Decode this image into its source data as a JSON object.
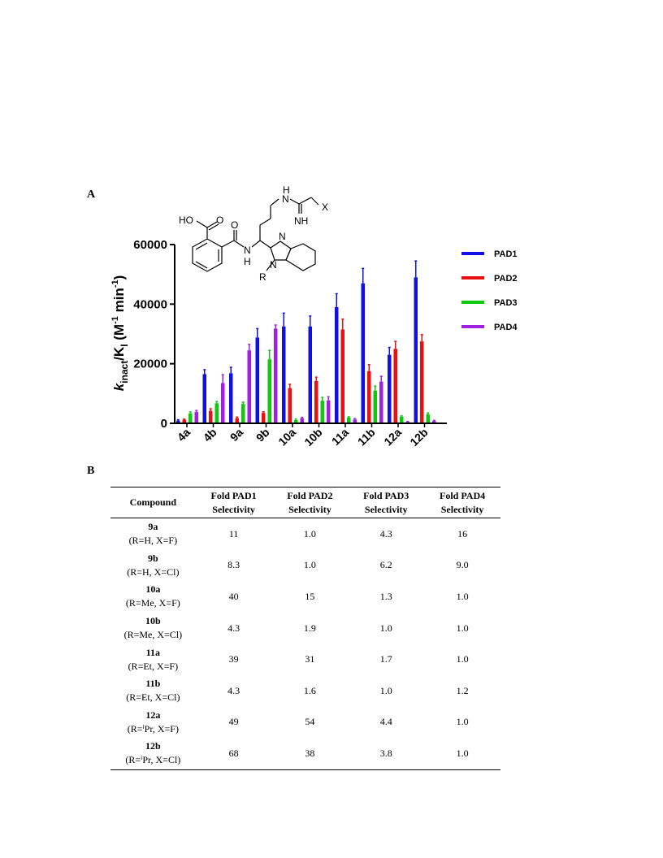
{
  "panels": {
    "a": "A",
    "b": "B"
  },
  "structure": {
    "labels": [
      "HO",
      "O",
      "O",
      "N",
      "H",
      "N",
      "N",
      "R",
      "H",
      "N",
      "NH",
      "X"
    ]
  },
  "chart_data": {
    "type": "bar",
    "ylabel_main": "k",
    "ylabel_sub_inact": "inact",
    "ylabel_mid": "/K",
    "ylabel_sub_i": "I",
    "ylabel_units": " (M",
    "ylabel_exp1": "-1",
    "ylabel_units2": " min",
    "ylabel_exp2": "-1",
    "ylabel_close": ")",
    "ylim": [
      0,
      60000
    ],
    "yticks": [
      "0",
      "20000",
      "40000",
      "60000"
    ],
    "ytick_values": [
      0,
      20000,
      40000,
      60000
    ],
    "categories": [
      "4a",
      "4b",
      "9a",
      "9b",
      "10a",
      "10b",
      "11a",
      "11b",
      "12a",
      "12b"
    ],
    "series": [
      {
        "name": "PAD1",
        "color": "#1010e0",
        "values": [
          900,
          16500,
          16800,
          28800,
          32500,
          32500,
          39000,
          47000,
          23000,
          49000
        ],
        "errors": [
          300,
          1500,
          2000,
          3000,
          4500,
          3500,
          4500,
          5000,
          2500,
          5500
        ]
      },
      {
        "name": "PAD2",
        "color": "#e81010",
        "values": [
          1200,
          4200,
          1700,
          3500,
          11800,
          14200,
          31500,
          17500,
          25000,
          27500
        ],
        "errors": [
          200,
          700,
          400,
          400,
          1300,
          1300,
          3500,
          2200,
          2500,
          2300
        ]
      },
      {
        "name": "PAD3",
        "color": "#10c810",
        "values": [
          3300,
          6700,
          6500,
          21500,
          1100,
          7600,
          1900,
          11000,
          2200,
          3000
        ],
        "errors": [
          500,
          600,
          600,
          3000,
          300,
          1100,
          300,
          1500,
          300,
          500
        ]
      },
      {
        "name": "PAD4",
        "color": "#a020e0",
        "values": [
          3800,
          13500,
          24500,
          31800,
          1700,
          7700,
          1300,
          14000,
          500,
          800
        ],
        "errors": [
          500,
          2800,
          2000,
          1200,
          300,
          1200,
          300,
          1800,
          100,
          200
        ]
      }
    ],
    "legend_position": "right"
  },
  "table": {
    "headers": [
      [
        "Compound"
      ],
      [
        "Fold PAD1",
        "Selectivity"
      ],
      [
        "Fold PAD2",
        "Selectivity"
      ],
      [
        "Fold PAD3",
        "Selectivity"
      ],
      [
        "Fold PAD4",
        "Selectivity"
      ]
    ],
    "rows": [
      {
        "id": "9a",
        "sub": "(R=H, X=F)",
        "values": [
          "11",
          "1.0",
          "4.3",
          "16"
        ]
      },
      {
        "id": "9b",
        "sub": "(R=H, X=Cl)",
        "values": [
          "8.3",
          "1.0",
          "6.2",
          "9.0"
        ]
      },
      {
        "id": "10a",
        "sub": "(R=Me, X=F)",
        "values": [
          "40",
          "15",
          "1.3",
          "1.0"
        ]
      },
      {
        "id": "10b",
        "sub": "(R=Me, X=Cl)",
        "values": [
          "4.3",
          "1.9",
          "1.0",
          "1.0"
        ]
      },
      {
        "id": "11a",
        "sub": "(R=Et, X=F)",
        "values": [
          "39",
          "31",
          "1.7",
          "1.0"
        ]
      },
      {
        "id": "11b",
        "sub": "(R=Et, X=Cl)",
        "values": [
          "4.3",
          "1.6",
          "1.0",
          "1.2"
        ]
      },
      {
        "id": "12a",
        "sub": "(R=ⁱPr, X=F)",
        "values": [
          "49",
          "54",
          "4.4",
          "1.0"
        ]
      },
      {
        "id": "12b",
        "sub": "(R=ⁱPr, X=Cl)",
        "values": [
          "68",
          "38",
          "3.8",
          "1.0"
        ]
      }
    ]
  }
}
